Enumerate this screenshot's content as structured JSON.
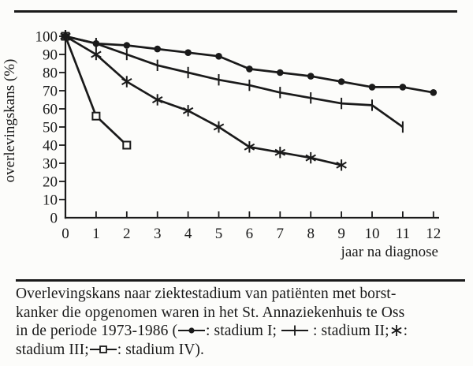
{
  "figure": {
    "background": "#fcfcfa",
    "ink": "#1a1a1a"
  },
  "chart_data": {
    "type": "line",
    "title": "",
    "xlabel": "jaar na diagnose",
    "ylabel": "overlevingskans (%)",
    "xlim": [
      0,
      12
    ],
    "ylim": [
      0,
      100
    ],
    "xticks": [
      0,
      1,
      2,
      3,
      4,
      5,
      6,
      7,
      8,
      9,
      10,
      11,
      12
    ],
    "yticks": [
      0,
      10,
      20,
      30,
      40,
      50,
      60,
      70,
      80,
      90,
      100
    ],
    "grid": false,
    "legend_position": "in-caption",
    "series": [
      {
        "name": "stadium I",
        "marker": "circle",
        "x": [
          0,
          1,
          2,
          3,
          4,
          5,
          6,
          7,
          8,
          9,
          10,
          11,
          12
        ],
        "values": [
          100,
          96,
          95,
          93,
          91,
          89,
          82,
          80,
          78,
          75,
          72,
          72,
          69
        ]
      },
      {
        "name": "stadium II",
        "marker": "plus",
        "x": [
          0,
          1,
          2,
          3,
          4,
          5,
          6,
          7,
          8,
          9,
          10,
          11
        ],
        "values": [
          100,
          96,
          90,
          84,
          80,
          76,
          73,
          69,
          66,
          63,
          62,
          50
        ]
      },
      {
        "name": "stadium III",
        "marker": "asterisk",
        "x": [
          0,
          1,
          2,
          3,
          4,
          5,
          6,
          7,
          8,
          9
        ],
        "values": [
          100,
          90,
          75,
          65,
          59,
          50,
          39,
          36,
          33,
          29
        ]
      },
      {
        "name": "stadium IV",
        "marker": "square",
        "x": [
          0,
          1,
          2
        ],
        "values": [
          100,
          56,
          40
        ]
      }
    ]
  },
  "caption": {
    "segments": [
      {
        "text": "Overlevingskans naar ziektestadium van patiënten met borst-"
      },
      {
        "break": true
      },
      {
        "text": "kanker die opgenomen waren in het St. Annaziekenhuis te Oss"
      },
      {
        "break": true
      },
      {
        "text": "in de periode 1973-1986 ("
      },
      {
        "symbol": "line-circle"
      },
      {
        "text": ": stadium I; "
      },
      {
        "symbol": "line-plus"
      },
      {
        "text": " : stadium II;"
      },
      {
        "symbol": "asterisk"
      },
      {
        "text": ":"
      },
      {
        "break": true
      },
      {
        "text": "stadium III;"
      },
      {
        "symbol": "line-square"
      },
      {
        "text": ": stadium IV)."
      }
    ]
  }
}
